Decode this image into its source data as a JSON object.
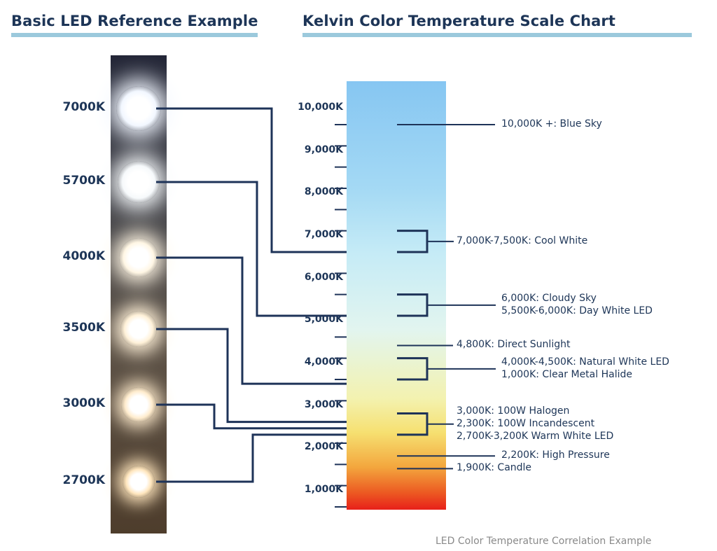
{
  "headings": {
    "left": "Basic LED Reference Example",
    "right": "Kelvin Color Temperature Scale Chart"
  },
  "footer": "LED Color Temperature Correlation Example",
  "colors": {
    "text": "#1d3557",
    "rule": "#9bc9dc",
    "line": "#1e3358",
    "footer": "#8a8a8a"
  },
  "chart_data": {
    "type": "scale",
    "scale_label": "Kelvin Color Temperature Scale Chart",
    "ylim": [
      0,
      10000
    ],
    "ticks": [
      {
        "value": 10000,
        "label": "10,000K"
      },
      {
        "value": 9000,
        "label": "9,000K"
      },
      {
        "value": 8000,
        "label": "8,000K"
      },
      {
        "value": 7000,
        "label": "7,000K"
      },
      {
        "value": 6000,
        "label": "6,000K"
      },
      {
        "value": 5000,
        "label": "5,000K"
      },
      {
        "value": 4000,
        "label": "4,000K"
      },
      {
        "value": 3000,
        "label": "3,000K"
      },
      {
        "value": 2000,
        "label": "2,000K"
      },
      {
        "value": 1000,
        "label": "1,000K"
      }
    ],
    "led_examples": [
      {
        "label": "7000K",
        "kelvin": 7000,
        "color": "#f2f7ff"
      },
      {
        "label": "5700K",
        "kelvin": 5700,
        "color": "#f6f9fb"
      },
      {
        "label": "4000K",
        "kelvin": 4000,
        "color": "#fff6e4"
      },
      {
        "label": "3500K",
        "kelvin": 3500,
        "color": "#fff1d8"
      },
      {
        "label": "3000K",
        "kelvin": 3000,
        "color": "#ffeccd"
      },
      {
        "label": "2700K",
        "kelvin": 2700,
        "color": "#ffe6bd"
      }
    ],
    "annotations": [
      {
        "lines": [
          "10,000K +: Blue Sky"
        ],
        "from": 10000,
        "to": 10000
      },
      {
        "lines": [
          "7,000K-7,500K: Cool White"
        ],
        "from": 7000,
        "to": 7500
      },
      {
        "lines": [
          "6,000K: Cloudy Sky",
          "5,500K-6,000K: Day White LED"
        ],
        "from": 5500,
        "to": 6000
      },
      {
        "lines": [
          "4,800K: Direct Sunlight"
        ],
        "from": 4800,
        "to": 4800
      },
      {
        "lines": [
          "4,000K-4,500K: Natural White LED",
          "1,000K: Clear Metal Halide"
        ],
        "from": 4000,
        "to": 4500
      },
      {
        "lines": [
          "3,000K: 100W Halogen",
          "2,300K: 100W Incandescent",
          "2,700K-3,200K Warm White LED"
        ],
        "from": 2700,
        "to": 3200
      },
      {
        "lines": [
          "2,200K: High Pressure"
        ],
        "from": 2200,
        "to": 2200
      },
      {
        "lines": [
          "1,900K: Candle"
        ],
        "from": 1900,
        "to": 1900
      }
    ]
  }
}
